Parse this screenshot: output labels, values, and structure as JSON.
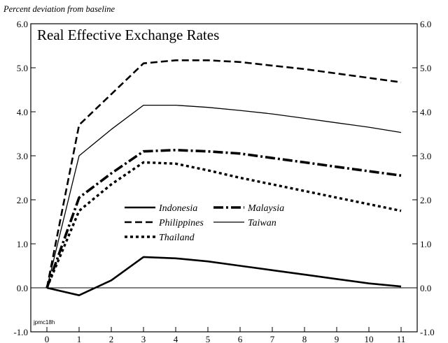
{
  "chart_data": {
    "type": "line",
    "title": "Real Effective Exchange Rates",
    "ylabel": "Percent deviation from baseline",
    "xlabel": "",
    "x": [
      0,
      1,
      2,
      3,
      4,
      5,
      6,
      7,
      8,
      9,
      10,
      11
    ],
    "xticks": [
      "0",
      "1",
      "2",
      "3",
      "4",
      "5",
      "6",
      "7",
      "8",
      "9",
      "10",
      "11"
    ],
    "ylim": [
      -1.0,
      6.0
    ],
    "yticks": [
      "-1.0",
      "0.0",
      "1.0",
      "2.0",
      "3.0",
      "4.0",
      "5.0",
      "6.0"
    ],
    "grid": false,
    "zero_line": true,
    "legend_position": "center",
    "note": "jpmc18h",
    "series": [
      {
        "name": "Indonesia",
        "style": "solid-thick",
        "values": [
          0.0,
          -0.17,
          0.17,
          0.7,
          0.67,
          0.6,
          0.5,
          0.4,
          0.3,
          0.2,
          0.1,
          0.03
        ]
      },
      {
        "name": "Malaysia",
        "style": "dash-dot",
        "values": [
          0.0,
          2.05,
          2.6,
          3.1,
          3.13,
          3.1,
          3.05,
          2.95,
          2.85,
          2.75,
          2.65,
          2.55
        ]
      },
      {
        "name": "Philippines",
        "style": "long-dash",
        "values": [
          0.0,
          3.7,
          4.4,
          5.1,
          5.17,
          5.17,
          5.13,
          5.05,
          4.97,
          4.87,
          4.77,
          4.67
        ]
      },
      {
        "name": "Taiwan",
        "style": "solid-thin",
        "values": [
          0.0,
          3.0,
          3.6,
          4.15,
          4.15,
          4.1,
          4.03,
          3.95,
          3.85,
          3.75,
          3.65,
          3.53
        ]
      },
      {
        "name": "Thailand",
        "style": "dotted",
        "values": [
          0.0,
          1.75,
          2.35,
          2.85,
          2.82,
          2.67,
          2.5,
          2.35,
          2.2,
          2.05,
          1.9,
          1.75
        ]
      }
    ]
  }
}
